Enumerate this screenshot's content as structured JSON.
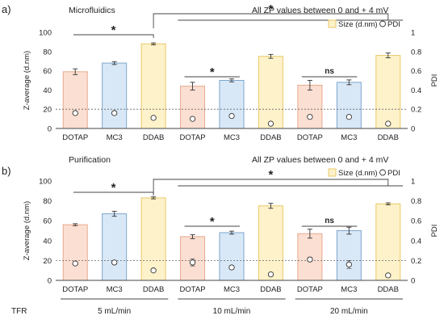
{
  "chart_data": [
    {
      "type": "bar",
      "panel_label": "a)",
      "title": "Microfluidics",
      "note": "All ZP values between 0 and + 4 mV",
      "ylabel": "Z-average (d.nm)",
      "y2label": "PDI",
      "ylim": [
        0,
        100
      ],
      "y2lim": [
        0,
        1
      ],
      "yticks": [
        "0",
        "20",
        "40",
        "60",
        "80",
        "100"
      ],
      "y2ticks": [
        "0",
        "0.2",
        "0.4",
        "0.6",
        "0.8",
        "1"
      ],
      "pdi_reference": 0.2,
      "legend": {
        "placement": "top-right",
        "bar_label": "Size (d.nm)",
        "point_label": "PDI"
      },
      "categories": [
        "DOTAP",
        "MC3",
        "DDAB",
        "DOTAP",
        "MC3",
        "DDAB",
        "DOTAP",
        "MC3",
        "DDAB"
      ],
      "size": [
        59,
        68,
        88,
        44,
        50,
        75,
        45,
        48,
        76
      ],
      "size_err": [
        3,
        1.5,
        1,
        4,
        1.5,
        2,
        5,
        2.5,
        2.5
      ],
      "pdi": [
        0.16,
        0.16,
        0.11,
        0.1,
        0.13,
        0.05,
        0.12,
        0.12,
        0.05
      ],
      "pdi_err": [
        0,
        0,
        0,
        0,
        0,
        0,
        0,
        0,
        0
      ],
      "significance": [
        {
          "label": "*",
          "level": 96,
          "from": 0,
          "to": 2,
          "tier": "low"
        },
        {
          "label": "*",
          "level": 96,
          "from": 2,
          "to": 8,
          "tier": "high"
        },
        {
          "label": "*",
          "level": 56,
          "from": 3,
          "to": 4,
          "tier": "pair"
        },
        {
          "label": "ns",
          "level": 56,
          "from": 6,
          "to": 7,
          "tier": "pair"
        }
      ]
    },
    {
      "type": "bar",
      "panel_label": "b)",
      "title": "Purification",
      "note": "All ZP values between 0 and + 4 mV",
      "ylabel": "Z-average (d.nm)",
      "y2label": "PDI",
      "ylim": [
        0,
        100
      ],
      "y2lim": [
        0,
        1
      ],
      "yticks": [
        "0",
        "20",
        "40",
        "60",
        "80",
        "100"
      ],
      "y2ticks": [
        "0",
        "0.2",
        "0.4",
        "0.6",
        "0.8",
        "1"
      ],
      "pdi_reference": 0.2,
      "legend": {
        "placement": "top-right",
        "bar_label": "Size (d.nm)",
        "point_label": "PDI"
      },
      "categories": [
        "DOTAP",
        "MC3",
        "DDAB",
        "DOTAP",
        "MC3",
        "DDAB",
        "DOTAP",
        "MC3",
        "DDAB"
      ],
      "size": [
        56,
        67,
        83,
        44,
        48,
        75,
        47,
        50,
        77
      ],
      "size_err": [
        1,
        2.5,
        1,
        2,
        1.5,
        2.5,
        4.5,
        3.5,
        1
      ],
      "pdi": [
        0.17,
        0.18,
        0.1,
        0.18,
        0.13,
        0.06,
        0.21,
        0.16,
        0.05
      ],
      "pdi_err": [
        0,
        0,
        0,
        0.035,
        0,
        0,
        0.02,
        0.04,
        0
      ],
      "significance": [
        {
          "label": "*",
          "level": 92,
          "from": 0,
          "to": 2,
          "tier": "low"
        },
        {
          "label": "*",
          "level": 92,
          "from": 2,
          "to": 8,
          "tier": "high"
        },
        {
          "label": "*",
          "level": 56,
          "from": 3,
          "to": 4,
          "tier": "pair"
        },
        {
          "label": "ns",
          "level": 56,
          "from": 6,
          "to": 7,
          "tier": "pair"
        }
      ]
    }
  ],
  "tfr": {
    "label": "TFR",
    "groups": [
      "5 mL/min",
      "10 mL/min",
      "20 mL/min"
    ]
  },
  "colors": {
    "bar_fill": [
      "#fbdfd2",
      "#d9e8f6",
      "#fdf2c9"
    ],
    "bar_stroke": [
      "#e8a98e",
      "#7ea6cf",
      "#e9c969"
    ]
  }
}
